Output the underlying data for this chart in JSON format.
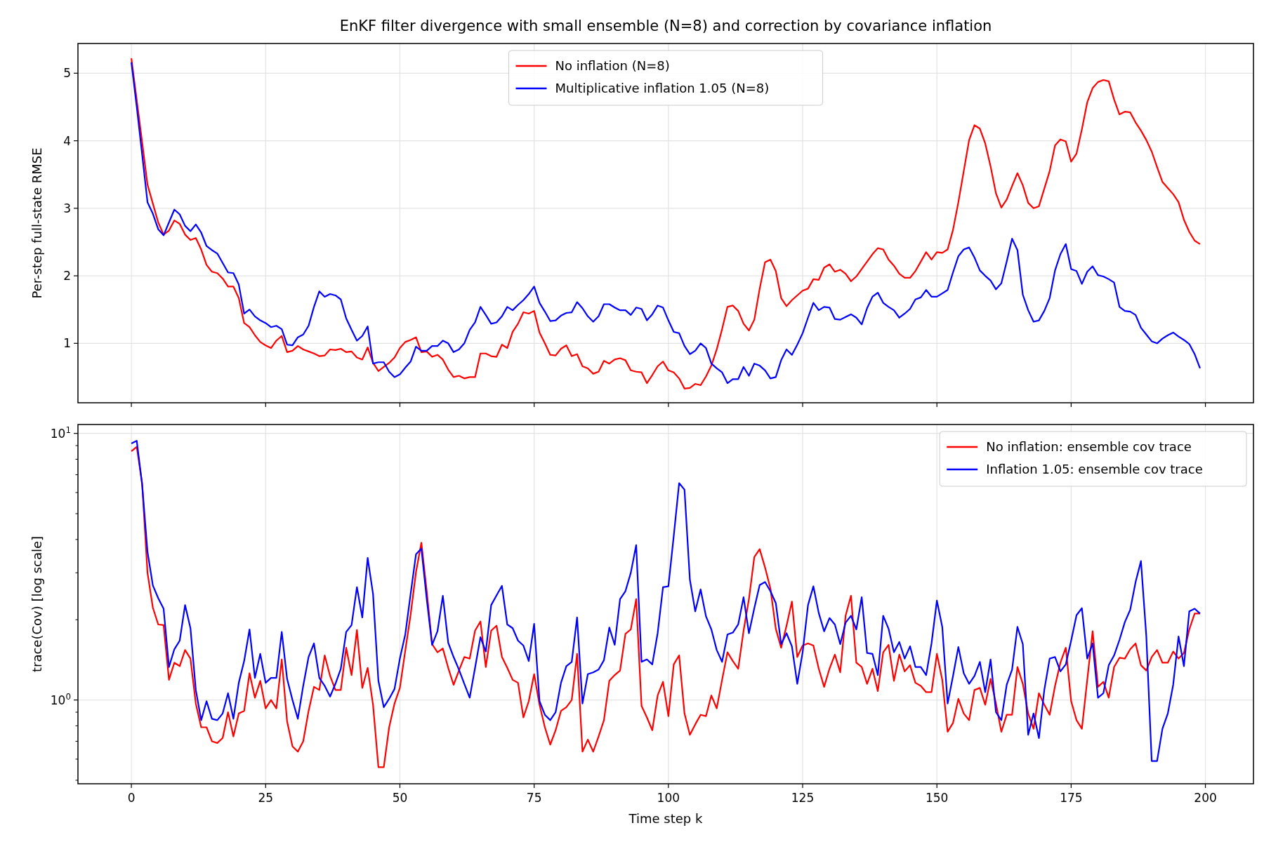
{
  "chart_data": [
    {
      "type": "line",
      "title": "EnKF filter divergence with small ensemble (N=8) and correction by covariance inflation",
      "ylabel": "Per-step full-state RMSE",
      "x": [
        0,
        1,
        2,
        3,
        4,
        5,
        6,
        7,
        8,
        9,
        10,
        11,
        12,
        13,
        14,
        15,
        16,
        17,
        18,
        19,
        20,
        21,
        22,
        23,
        24,
        25,
        26,
        27,
        28,
        29,
        30,
        31,
        32,
        33,
        34,
        35,
        36,
        37,
        38,
        39,
        40,
        41,
        42,
        43,
        44,
        45,
        46,
        47,
        48,
        49,
        50,
        51,
        52,
        53,
        54,
        55,
        56,
        57,
        58,
        59,
        60,
        61,
        62,
        63,
        64,
        65,
        66,
        67,
        68,
        69,
        70,
        71,
        72,
        73,
        74,
        75,
        76,
        77,
        78,
        79,
        80,
        81,
        82,
        83,
        84,
        85,
        86,
        87,
        88,
        89,
        90,
        91,
        92,
        93,
        94,
        95,
        96,
        97,
        98,
        99,
        100,
        101,
        102,
        103,
        104,
        105,
        106,
        107,
        108,
        109,
        110,
        111,
        112,
        113,
        114,
        115,
        116,
        117,
        118,
        119,
        120,
        121,
        122,
        123,
        124,
        125,
        126,
        127,
        128,
        129,
        130,
        131,
        132,
        133,
        134,
        135,
        136,
        137,
        138,
        139,
        140,
        141,
        142,
        143,
        144,
        145,
        146,
        147,
        148,
        149,
        150,
        151,
        152,
        153,
        154,
        155,
        156,
        157,
        158,
        159,
        160,
        161,
        162,
        163,
        164,
        165,
        166,
        167,
        168,
        169,
        170,
        171,
        172,
        173,
        174,
        175,
        176,
        177,
        178,
        179,
        180,
        181,
        182,
        183,
        184,
        185,
        186,
        187,
        188,
        189,
        190,
        191,
        192,
        193,
        194,
        195,
        196,
        197,
        198,
        199
      ],
      "xlim": [
        -9.95,
        208.95
      ],
      "xticks": [
        0,
        25,
        50,
        75,
        100,
        125,
        150,
        175,
        200
      ],
      "ylim": [
        0.12,
        5.44
      ],
      "yticks": [
        1,
        2,
        3,
        4,
        5
      ],
      "grid": true,
      "legend": "top",
      "tick_labels": "y",
      "series": [
        {
          "name": "No inflation (N=8)",
          "color": "#ff0000",
          "values": [
            5.22,
            4.6,
            3.98,
            3.35,
            3.07,
            2.79,
            2.61,
            2.67,
            2.82,
            2.77,
            2.61,
            2.53,
            2.56,
            2.39,
            2.16,
            2.06,
            2.04,
            1.96,
            1.84,
            1.84,
            1.67,
            1.3,
            1.24,
            1.12,
            1.02,
            0.97,
            0.93,
            1.04,
            1.11,
            0.87,
            0.89,
            0.96,
            0.91,
            0.88,
            0.85,
            0.81,
            0.82,
            0.91,
            0.9,
            0.92,
            0.87,
            0.88,
            0.79,
            0.76,
            0.94,
            0.71,
            0.59,
            0.65,
            0.71,
            0.79,
            0.93,
            1.02,
            1.05,
            1.09,
            0.87,
            0.88,
            0.8,
            0.83,
            0.76,
            0.61,
            0.5,
            0.52,
            0.48,
            0.5,
            0.5,
            0.85,
            0.85,
            0.81,
            0.8,
            0.98,
            0.93,
            1.17,
            1.29,
            1.46,
            1.44,
            1.48,
            1.16,
            1.0,
            0.83,
            0.82,
            0.92,
            0.97,
            0.81,
            0.84,
            0.66,
            0.63,
            0.55,
            0.58,
            0.74,
            0.7,
            0.76,
            0.78,
            0.75,
            0.6,
            0.58,
            0.57,
            0.41,
            0.53,
            0.66,
            0.73,
            0.6,
            0.57,
            0.48,
            0.33,
            0.34,
            0.4,
            0.38,
            0.51,
            0.67,
            0.91,
            1.21,
            1.54,
            1.56,
            1.48,
            1.29,
            1.19,
            1.35,
            1.81,
            2.2,
            2.24,
            2.07,
            1.67,
            1.55,
            1.64,
            1.71,
            1.78,
            1.81,
            1.95,
            1.94,
            2.12,
            2.17,
            2.06,
            2.09,
            2.03,
            1.92,
            1.99,
            2.1,
            2.21,
            2.32,
            2.41,
            2.39,
            2.24,
            2.15,
            2.03,
            1.97,
            1.97,
            2.07,
            2.21,
            2.35,
            2.24,
            2.35,
            2.34,
            2.39,
            2.68,
            3.09,
            3.55,
            4.01,
            4.23,
            4.18,
            3.96,
            3.62,
            3.22,
            3.01,
            3.13,
            3.33,
            3.52,
            3.34,
            3.08,
            3.0,
            3.03,
            3.29,
            3.55,
            3.93,
            4.02,
            3.99,
            3.69,
            3.81,
            4.17,
            4.57,
            4.78,
            4.87,
            4.9,
            4.88,
            4.61,
            4.39,
            4.43,
            4.42,
            4.27,
            4.15,
            4.01,
            3.84,
            3.61,
            3.39,
            3.3,
            3.21,
            3.09,
            2.83,
            2.65,
            2.52,
            2.47
          ]
        },
        {
          "name": "Multiplicative inflation 1.05 (N=8)",
          "color": "#0000ff",
          "values": [
            5.16,
            4.5,
            3.8,
            3.09,
            2.92,
            2.69,
            2.6,
            2.79,
            2.98,
            2.91,
            2.74,
            2.66,
            2.76,
            2.64,
            2.44,
            2.38,
            2.33,
            2.19,
            2.05,
            2.04,
            1.87,
            1.44,
            1.5,
            1.4,
            1.34,
            1.3,
            1.24,
            1.26,
            1.21,
            0.98,
            0.97,
            1.09,
            1.13,
            1.26,
            1.54,
            1.77,
            1.69,
            1.73,
            1.71,
            1.65,
            1.37,
            1.2,
            1.04,
            1.11,
            1.25,
            0.7,
            0.72,
            0.72,
            0.58,
            0.5,
            0.54,
            0.64,
            0.73,
            0.95,
            0.89,
            0.89,
            0.96,
            0.96,
            1.04,
            1.0,
            0.87,
            0.91,
            1.0,
            1.2,
            1.31,
            1.54,
            1.42,
            1.29,
            1.31,
            1.4,
            1.54,
            1.49,
            1.57,
            1.64,
            1.73,
            1.84,
            1.6,
            1.47,
            1.33,
            1.34,
            1.41,
            1.45,
            1.46,
            1.61,
            1.52,
            1.4,
            1.32,
            1.4,
            1.58,
            1.58,
            1.53,
            1.49,
            1.49,
            1.42,
            1.53,
            1.51,
            1.34,
            1.43,
            1.56,
            1.53,
            1.34,
            1.17,
            1.15,
            0.96,
            0.84,
            0.89,
            1.0,
            0.93,
            0.7,
            0.63,
            0.57,
            0.41,
            0.47,
            0.47,
            0.65,
            0.52,
            0.7,
            0.67,
            0.6,
            0.48,
            0.5,
            0.75,
            0.91,
            0.83,
            0.98,
            1.15,
            1.38,
            1.6,
            1.49,
            1.54,
            1.53,
            1.36,
            1.35,
            1.39,
            1.43,
            1.38,
            1.28,
            1.52,
            1.69,
            1.75,
            1.6,
            1.54,
            1.49,
            1.38,
            1.44,
            1.51,
            1.65,
            1.68,
            1.79,
            1.69,
            1.69,
            1.74,
            1.79,
            2.05,
            2.29,
            2.39,
            2.42,
            2.27,
            2.08,
            2.0,
            1.93,
            1.8,
            1.89,
            2.21,
            2.55,
            2.38,
            1.72,
            1.49,
            1.32,
            1.34,
            1.48,
            1.67,
            2.08,
            2.32,
            2.47,
            2.1,
            2.07,
            1.88,
            2.06,
            2.14,
            2.01,
            1.99,
            1.95,
            1.9,
            1.54,
            1.48,
            1.47,
            1.42,
            1.23,
            1.13,
            1.03,
            1.0,
            1.07,
            1.12,
            1.16,
            1.1,
            1.05,
            0.99,
            0.84,
            0.63
          ]
        }
      ]
    },
    {
      "type": "line",
      "xlabel": "Time step k",
      "ylabel": "trace(Cov) [log scale]",
      "x": [
        0,
        1,
        2,
        3,
        4,
        5,
        6,
        7,
        8,
        9,
        10,
        11,
        12,
        13,
        14,
        15,
        16,
        17,
        18,
        19,
        20,
        21,
        22,
        23,
        24,
        25,
        26,
        27,
        28,
        29,
        30,
        31,
        32,
        33,
        34,
        35,
        36,
        37,
        38,
        39,
        40,
        41,
        42,
        43,
        44,
        45,
        46,
        47,
        48,
        49,
        50,
        51,
        52,
        53,
        54,
        55,
        56,
        57,
        58,
        59,
        60,
        61,
        62,
        63,
        64,
        65,
        66,
        67,
        68,
        69,
        70,
        71,
        72,
        73,
        74,
        75,
        76,
        77,
        78,
        79,
        80,
        81,
        82,
        83,
        84,
        85,
        86,
        87,
        88,
        89,
        90,
        91,
        92,
        93,
        94,
        95,
        96,
        97,
        98,
        99,
        100,
        101,
        102,
        103,
        104,
        105,
        106,
        107,
        108,
        109,
        110,
        111,
        112,
        113,
        114,
        115,
        116,
        117,
        118,
        119,
        120,
        121,
        122,
        123,
        124,
        125,
        126,
        127,
        128,
        129,
        130,
        131,
        132,
        133,
        134,
        135,
        136,
        137,
        138,
        139,
        140,
        141,
        142,
        143,
        144,
        145,
        146,
        147,
        148,
        149,
        150,
        151,
        152,
        153,
        154,
        155,
        156,
        157,
        158,
        159,
        160,
        161,
        162,
        163,
        164,
        165,
        166,
        167,
        168,
        169,
        170,
        171,
        172,
        173,
        174,
        175,
        176,
        177,
        178,
        179,
        180,
        181,
        182,
        183,
        184,
        185,
        186,
        187,
        188,
        189,
        190,
        191,
        192,
        193,
        194,
        195,
        196,
        197,
        198,
        199
      ],
      "xlim": [
        -9.95,
        208.95
      ],
      "xticks": [
        0,
        25,
        50,
        75,
        100,
        125,
        150,
        175,
        200
      ],
      "ylim": [
        0.485,
        10.8
      ],
      "yticks": [
        {
          "value": 0.5,
          "label": null
        },
        {
          "value": 0.6,
          "label": null
        },
        {
          "value": 0.7,
          "label": null
        },
        {
          "value": 0.8,
          "label": null
        },
        {
          "value": 0.9,
          "label": null
        },
        {
          "value": 1,
          "label": "10$^{0}$"
        },
        {
          "value": 2,
          "label": null
        },
        {
          "value": 3,
          "label": null
        },
        {
          "value": 4,
          "label": null
        },
        {
          "value": 5,
          "label": null
        },
        {
          "value": 6,
          "label": null
        },
        {
          "value": 7,
          "label": null
        },
        {
          "value": 8,
          "label": null
        },
        {
          "value": 9,
          "label": null
        },
        {
          "value": 10,
          "label": "10$^{1}$"
        }
      ],
      "log": "y",
      "grid": true,
      "legend": "top right",
      "series": [
        {
          "name": "No inflation: ensemble cov trace",
          "color": "#ff0000",
          "values": [
            8.57,
            8.9,
            6.5,
            3.0,
            2.22,
            1.92,
            1.91,
            1.19,
            1.38,
            1.34,
            1.54,
            1.43,
            0.97,
            0.79,
            0.79,
            0.7,
            0.69,
            0.72,
            0.9,
            0.73,
            0.89,
            0.91,
            1.26,
            1.02,
            1.18,
            0.93,
            1.0,
            0.93,
            1.42,
            0.83,
            0.67,
            0.64,
            0.7,
            0.91,
            1.12,
            1.09,
            1.47,
            1.23,
            1.09,
            1.09,
            1.57,
            1.24,
            1.83,
            1.11,
            1.32,
            0.96,
            0.56,
            0.56,
            0.79,
            0.97,
            1.11,
            1.53,
            2.09,
            3.02,
            3.89,
            2.56,
            1.62,
            1.51,
            1.56,
            1.32,
            1.14,
            1.29,
            1.45,
            1.43,
            1.82,
            1.97,
            1.33,
            1.82,
            1.9,
            1.45,
            1.32,
            1.19,
            1.16,
            0.86,
            0.99,
            1.25,
            0.96,
            0.79,
            0.68,
            0.77,
            0.91,
            0.94,
            1.0,
            1.49,
            0.64,
            0.71,
            0.64,
            0.73,
            0.84,
            1.18,
            1.24,
            1.29,
            1.77,
            1.84,
            2.39,
            0.95,
            0.86,
            0.77,
            1.04,
            1.17,
            0.87,
            1.36,
            1.47,
            0.89,
            0.74,
            0.81,
            0.88,
            0.87,
            1.04,
            0.93,
            1.19,
            1.51,
            1.4,
            1.31,
            1.82,
            2.39,
            3.44,
            3.68,
            3.14,
            2.62,
            1.85,
            1.57,
            1.9,
            2.34,
            1.45,
            1.6,
            1.63,
            1.6,
            1.31,
            1.12,
            1.31,
            1.48,
            1.27,
            2.07,
            2.46,
            1.38,
            1.33,
            1.15,
            1.31,
            1.08,
            1.51,
            1.61,
            1.18,
            1.48,
            1.28,
            1.35,
            1.16,
            1.13,
            1.07,
            1.07,
            1.49,
            1.19,
            0.76,
            0.82,
            1.01,
            0.89,
            0.84,
            1.09,
            1.11,
            0.96,
            1.2,
            0.97,
            0.76,
            0.88,
            0.88,
            1.33,
            1.15,
            0.89,
            0.78,
            1.06,
            0.96,
            0.88,
            1.13,
            1.38,
            1.57,
            0.99,
            0.84,
            0.78,
            1.19,
            1.81,
            1.12,
            1.17,
            1.02,
            1.33,
            1.44,
            1.43,
            1.55,
            1.63,
            1.35,
            1.29,
            1.45,
            1.54,
            1.38,
            1.38,
            1.52,
            1.43,
            1.5,
            1.84,
            2.11,
            2.11
          ]
        },
        {
          "name": "Inflation 1.05: ensemble cov trace",
          "color": "#0000ff",
          "values": [
            9.17,
            9.38,
            6.44,
            3.6,
            2.69,
            2.41,
            2.2,
            1.33,
            1.55,
            1.67,
            2.27,
            1.86,
            1.09,
            0.84,
            0.99,
            0.85,
            0.84,
            0.89,
            1.06,
            0.85,
            1.16,
            1.4,
            1.84,
            1.21,
            1.49,
            1.16,
            1.21,
            1.21,
            1.8,
            1.2,
            1.0,
            0.85,
            1.13,
            1.45,
            1.63,
            1.21,
            1.13,
            1.03,
            1.15,
            1.31,
            1.8,
            1.91,
            2.65,
            2.04,
            3.41,
            2.5,
            1.18,
            0.94,
            1.01,
            1.1,
            1.43,
            1.76,
            2.5,
            3.52,
            3.7,
            2.39,
            1.61,
            1.81,
            2.46,
            1.64,
            1.45,
            1.3,
            1.15,
            1.02,
            1.32,
            1.72,
            1.52,
            2.27,
            2.47,
            2.68,
            1.92,
            1.86,
            1.67,
            1.6,
            1.4,
            1.93,
            0.99,
            0.88,
            0.84,
            0.9,
            1.16,
            1.34,
            1.39,
            2.04,
            0.97,
            1.25,
            1.27,
            1.3,
            1.41,
            1.87,
            1.61,
            2.39,
            2.56,
            3.0,
            3.81,
            1.39,
            1.42,
            1.36,
            1.78,
            2.65,
            2.67,
            4.13,
            6.51,
            6.15,
            2.83,
            2.15,
            2.6,
            2.06,
            1.84,
            1.54,
            1.39,
            1.76,
            1.79,
            1.92,
            2.43,
            1.78,
            2.21,
            2.7,
            2.77,
            2.56,
            2.31,
            1.62,
            1.78,
            1.59,
            1.15,
            1.51,
            2.27,
            2.67,
            2.12,
            1.81,
            2.03,
            1.92,
            1.62,
            1.95,
            2.07,
            1.84,
            2.43,
            1.5,
            1.49,
            1.24,
            2.07,
            1.85,
            1.51,
            1.65,
            1.43,
            1.59,
            1.33,
            1.33,
            1.24,
            1.63,
            2.36,
            1.88,
            0.97,
            1.23,
            1.58,
            1.26,
            1.15,
            1.23,
            1.39,
            1.07,
            1.42,
            0.9,
            0.84,
            1.14,
            1.3,
            1.88,
            1.62,
            0.74,
            0.89,
            0.72,
            1.09,
            1.43,
            1.45,
            1.28,
            1.36,
            1.67,
            2.08,
            2.21,
            1.43,
            1.63,
            1.02,
            1.06,
            1.35,
            1.47,
            1.68,
            1.96,
            2.18,
            2.77,
            3.32,
            1.73,
            0.59,
            0.59,
            0.78,
            0.89,
            1.14,
            1.73,
            1.34,
            2.15,
            2.2,
            2.11
          ]
        }
      ]
    }
  ]
}
